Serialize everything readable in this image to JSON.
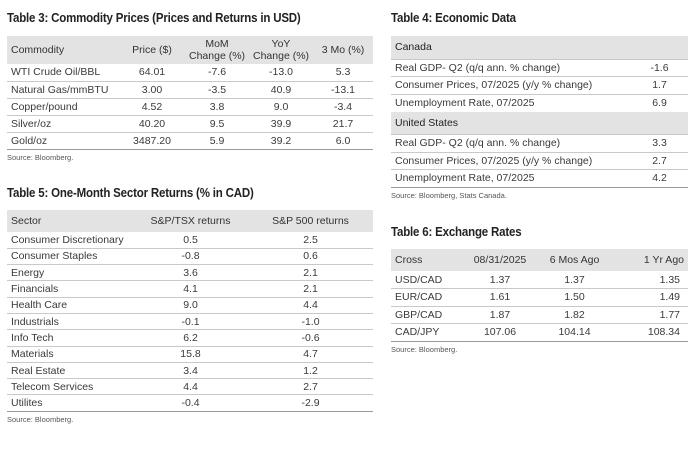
{
  "table3": {
    "title": "Table 3: Commodity Prices (Prices and Returns in USD)",
    "headers": [
      "Commodity",
      "Price ($)",
      "MoM Change (%)",
      "YoY Change (%)",
      "3 Mo (%)"
    ],
    "header_lines": [
      [
        "Commodity"
      ],
      [
        "Price ($)"
      ],
      [
        "MoM",
        "Change (%)"
      ],
      [
        "YoY",
        "Change (%)"
      ],
      [
        "3 Mo (%)"
      ]
    ],
    "rows": [
      [
        "WTI Crude Oil/BBL",
        "64.01",
        "-7.6",
        "-13.0",
        "5.3"
      ],
      [
        "Natural Gas/mmBTU",
        "3.00",
        "-3.5",
        "40.9",
        "-13.1"
      ],
      [
        "Copper/pound",
        "4.52",
        "3.8",
        "9.0",
        "-3.4"
      ],
      [
        "Silver/oz",
        "40.20",
        "9.5",
        "39.9",
        "21.7"
      ],
      [
        "Gold/oz",
        "3487.20",
        "5.9",
        "39.2",
        "6.0"
      ]
    ],
    "source": "Source: Bloomberg."
  },
  "table5": {
    "title": "Table 5: One-Month Sector Returns (% in CAD)",
    "headers": [
      "Sector",
      "S&P/TSX returns",
      "S&P 500 returns"
    ],
    "rows": [
      [
        "Consumer Discretionary",
        "0.5",
        "2.5"
      ],
      [
        "Consumer Staples",
        "-0.8",
        "0.6"
      ],
      [
        "Energy",
        "3.6",
        "2.1"
      ],
      [
        "Financials",
        "4.1",
        "2.1"
      ],
      [
        "Health Care",
        "9.0",
        "4.4"
      ],
      [
        "Industrials",
        "-0.1",
        "-1.0"
      ],
      [
        "Info Tech",
        "6.2",
        "-0.6"
      ],
      [
        "Materials",
        "15.8",
        "4.7"
      ],
      [
        "Real Estate",
        "3.4",
        "1.2"
      ],
      [
        "Telecom Services",
        "4.4",
        "2.7"
      ],
      [
        "Utilites",
        "-0.4",
        "-2.9"
      ]
    ],
    "source": "Source: Bloomberg."
  },
  "table4": {
    "title": "Table 4: Economic Data",
    "sections": [
      {
        "name": "Canada",
        "rows": [
          [
            "Real GDP- Q2 (q/q ann. % change)",
            "-1.6"
          ],
          [
            "Consumer Prices, 07/2025 (y/y % change)",
            "1.7"
          ],
          [
            "Unemployment Rate, 07/2025",
            "6.9"
          ]
        ]
      },
      {
        "name": "United States",
        "rows": [
          [
            "Real GDP- Q2 (q/q ann. % change)",
            "3.3"
          ],
          [
            "Consumer Prices, 07/2025 (y/y % change)",
            "2.7"
          ],
          [
            "Unemployment Rate, 07/2025",
            "4.2"
          ]
        ]
      }
    ],
    "source": "Source: Bloomberg, Stats Canada."
  },
  "table6": {
    "title": "Table 6: Exchange Rates",
    "headers": [
      "Cross",
      "08/31/2025",
      "6 Mos Ago",
      "1 Yr Ago"
    ],
    "rows": [
      [
        "USD/CAD",
        "1.37",
        "1.37",
        "1.35"
      ],
      [
        "EUR/CAD",
        "1.61",
        "1.50",
        "1.49"
      ],
      [
        "GBP/CAD",
        "1.87",
        "1.82",
        "1.77"
      ],
      [
        "CAD/JPY",
        "107.06",
        "104.14",
        "108.34"
      ]
    ],
    "source": "Source: Bloomberg."
  }
}
